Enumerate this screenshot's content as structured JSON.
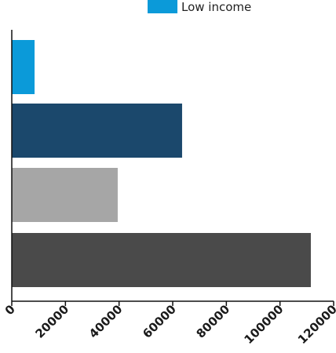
{
  "chart_data": {
    "type": "bar",
    "orientation": "horizontal",
    "legend": {
      "placement": "top-center",
      "entries": [
        {
          "label": "Low income",
          "color": "#0b9ad9"
        }
      ]
    },
    "bars": [
      {
        "value": 8500,
        "color": "#0b9ad9"
      },
      {
        "value": 63500,
        "color": "#1b486c"
      },
      {
        "value": 39500,
        "color": "#a6a6a6"
      },
      {
        "value": 111500,
        "color": "#4a4a4a"
      }
    ],
    "xlim": [
      0,
      120000
    ],
    "xticks": [
      "0",
      "20000",
      "40000",
      "60000",
      "80000",
      "100000",
      "120000"
    ],
    "grid": false
  }
}
